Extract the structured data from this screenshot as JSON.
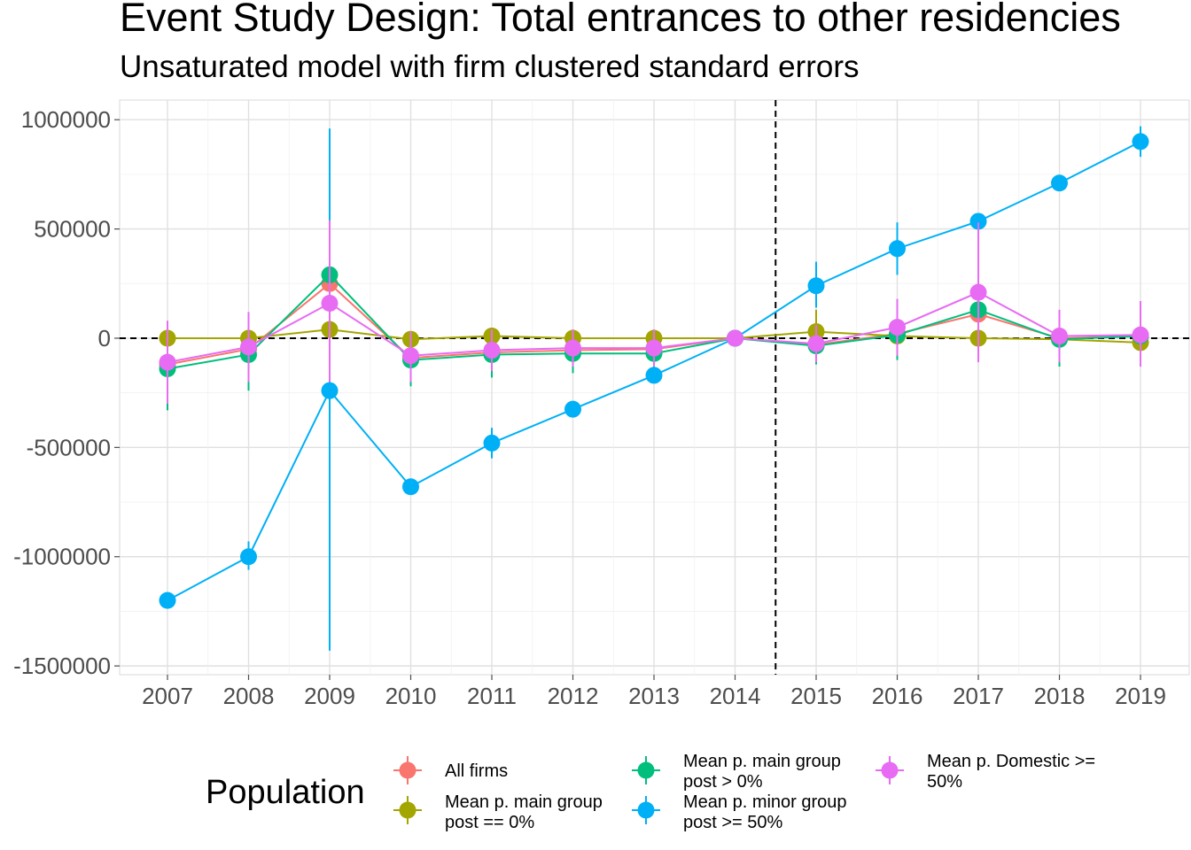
{
  "chart_data": {
    "type": "line",
    "title": "Event Study Design: Total entrances to other residencies",
    "subtitle": "Unsaturated model with firm clustered standard errors",
    "xlabel": "",
    "ylabel": "",
    "categories": [
      "2007",
      "2008",
      "2009",
      "2010",
      "2011",
      "2012",
      "2013",
      "2014",
      "2015",
      "2016",
      "2017",
      "2018",
      "2019"
    ],
    "y_ticks": [
      "1000000",
      "500000",
      "0",
      "-500000",
      "-1000000",
      "-1500000"
    ],
    "ylim": [
      -1540000,
      1090000
    ],
    "grid": true,
    "reference_lines": {
      "horizontal_y": 0,
      "vertical_between": [
        "2014",
        "2015"
      ],
      "style": "dashed"
    },
    "legend": {
      "title": "Population",
      "position": "bottom"
    },
    "series": [
      {
        "name": "All firms",
        "color": "#F8766D",
        "values": [
          -120000,
          -50000,
          250000,
          -90000,
          -65000,
          -55000,
          -50000,
          0,
          -30000,
          20000,
          110000,
          0,
          10000
        ],
        "ci_low": [
          -300000,
          -200000,
          -100000,
          -200000,
          -160000,
          -150000,
          -140000,
          0,
          -100000,
          -80000,
          -80000,
          -100000,
          -120000
        ],
        "ci_high": [
          60000,
          100000,
          600000,
          20000,
          30000,
          40000,
          40000,
          0,
          40000,
          130000,
          300000,
          100000,
          140000
        ]
      },
      {
        "name": "Mean p. main group\npost == 0%",
        "color": "#A3A500",
        "values": [
          0,
          0,
          40000,
          -5000,
          10000,
          0,
          0,
          0,
          30000,
          10000,
          0,
          -5000,
          -20000
        ],
        "ci_low": [
          -20000,
          -20000,
          -20000,
          -30000,
          -10000,
          -20000,
          -20000,
          0,
          -40000,
          -10000,
          -20000,
          -30000,
          -60000
        ],
        "ci_high": [
          20000,
          20000,
          100000,
          20000,
          30000,
          20000,
          20000,
          0,
          130000,
          30000,
          20000,
          20000,
          20000
        ]
      },
      {
        "name": "Mean p. main group\npost > 0%",
        "color": "#00BF7D",
        "values": [
          -140000,
          -75000,
          290000,
          -100000,
          -75000,
          -70000,
          -70000,
          0,
          -35000,
          15000,
          130000,
          -5000,
          10000
        ],
        "ci_low": [
          -330000,
          -240000,
          -100000,
          -220000,
          -180000,
          -160000,
          -160000,
          0,
          -120000,
          -100000,
          -100000,
          -130000,
          -130000
        ],
        "ci_high": [
          50000,
          90000,
          680000,
          20000,
          30000,
          20000,
          20000,
          0,
          50000,
          130000,
          360000,
          120000,
          150000
        ]
      },
      {
        "name": "Mean p. minor group\npost >= 50%",
        "color": "#00B0F6",
        "values": [
          -1200000,
          -1000000,
          -240000,
          -680000,
          -480000,
          -325000,
          -170000,
          0,
          240000,
          410000,
          535000,
          710000,
          900000
        ],
        "ci_low": [
          -1210000,
          -1060000,
          -1430000,
          -690000,
          -550000,
          -335000,
          -180000,
          0,
          140000,
          290000,
          525000,
          700000,
          830000
        ],
        "ci_high": [
          -1190000,
          -930000,
          960000,
          -670000,
          -410000,
          -315000,
          -160000,
          0,
          350000,
          530000,
          545000,
          720000,
          970000
        ]
      },
      {
        "name": "Mean p. Domestic >=\n50%",
        "color": "#E76BF3",
        "values": [
          -110000,
          -40000,
          160000,
          -80000,
          -55000,
          -45000,
          -45000,
          0,
          -25000,
          50000,
          210000,
          10000,
          15000
        ],
        "ci_low": [
          -300000,
          -200000,
          -200000,
          -200000,
          -150000,
          -130000,
          -130000,
          0,
          -110000,
          -80000,
          -110000,
          -110000,
          -130000
        ],
        "ci_high": [
          80000,
          120000,
          540000,
          30000,
          40000,
          40000,
          40000,
          0,
          60000,
          180000,
          530000,
          130000,
          170000
        ]
      }
    ]
  }
}
